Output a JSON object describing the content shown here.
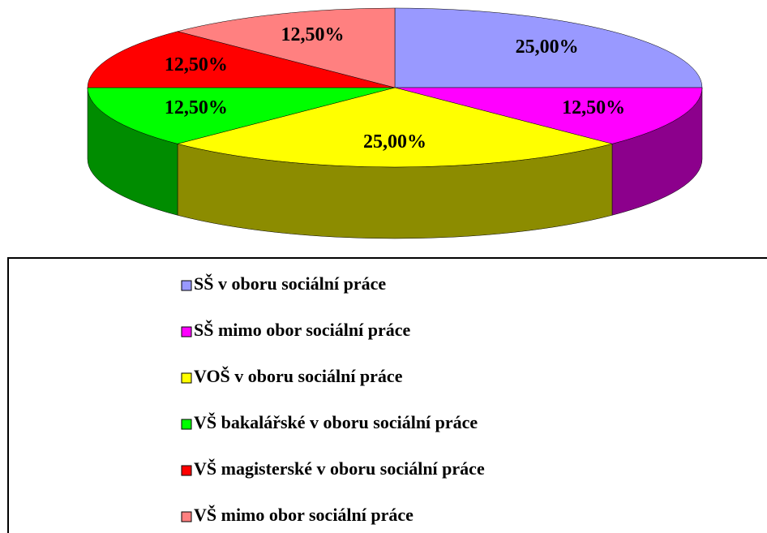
{
  "chart_data": {
    "type": "pie",
    "categories": [
      "SŠ  v oboru  sociální práce",
      "SŠ  mimo obor sociální práce",
      "VOŠ  v oboru sociální práce",
      "VŠ bakalářské  v oboru  sociální práce",
      "VŠ magisterské  v oboru  sociální práce",
      "VŠ  mimo obor sociální práce"
    ],
    "values": [
      25,
      12.5,
      25,
      12.5,
      12.5,
      12.5
    ],
    "value_labels": [
      "25,00%",
      "12,50%",
      "25,00%",
      "12,50%",
      "12,50%",
      "12,50%"
    ],
    "colors": [
      "#9999ff",
      "#ff00ff",
      "#ffff00",
      "#00ff00",
      "#ff0000",
      "#ff8080"
    ]
  }
}
